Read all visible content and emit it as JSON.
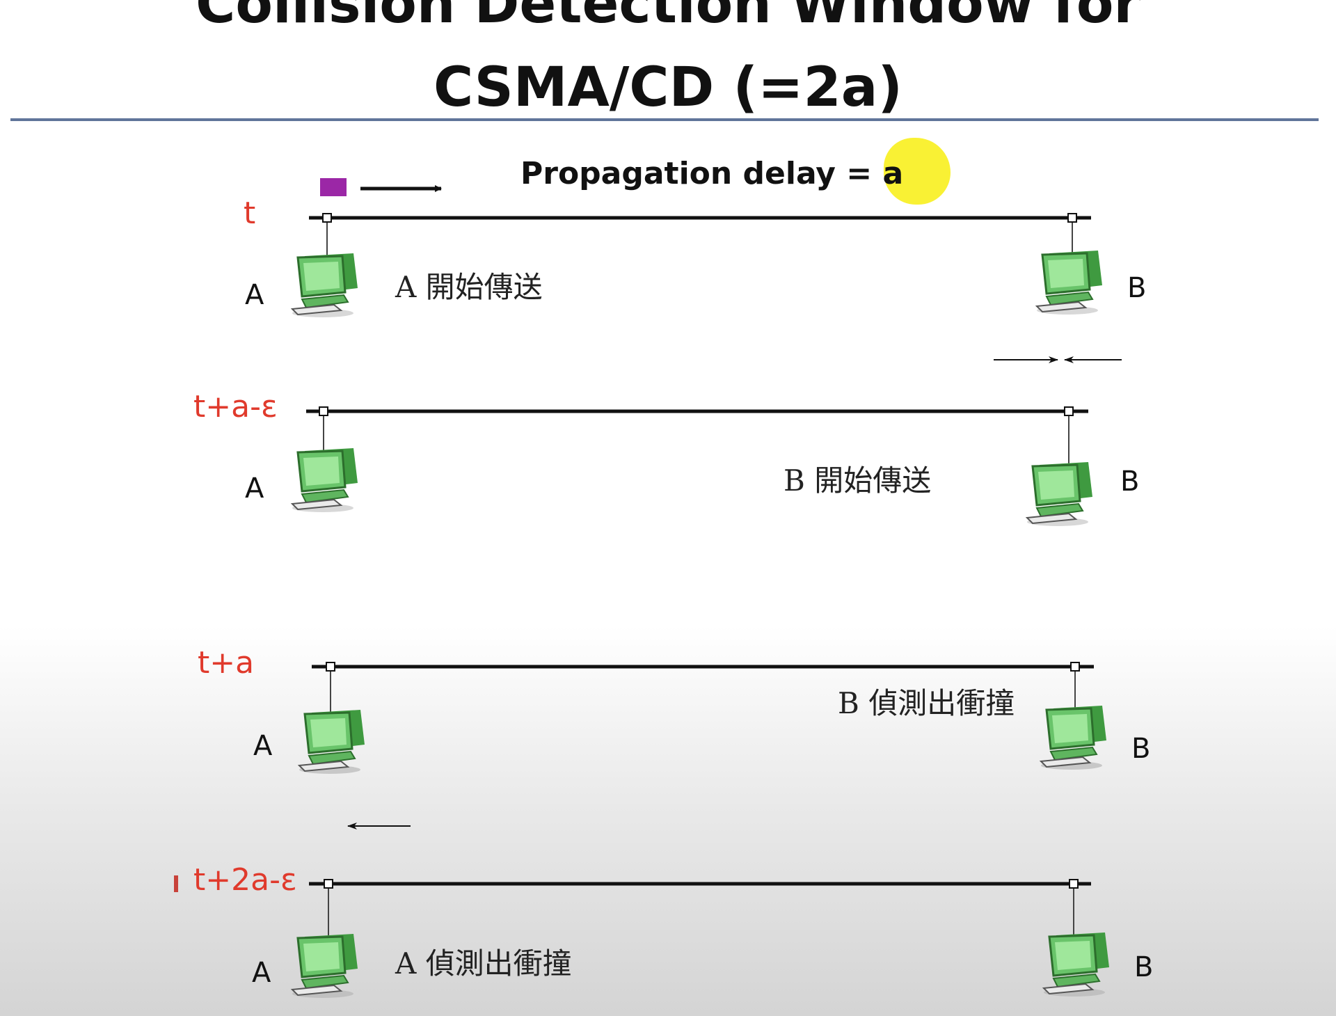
{
  "title": {
    "line1": "Collision Detection Window for",
    "line2": "CSMA/CD (=2a)"
  },
  "propagation_label": "Propagation delay = a",
  "rows": [
    {
      "time": "t",
      "left_station": "A",
      "right_station": "B",
      "event": "A 開始傳送"
    },
    {
      "time": "t+a-ε",
      "left_station": "A",
      "right_station": "B",
      "event": "B 開始傳送"
    },
    {
      "time": "t+a",
      "left_station": "A",
      "right_station": "B",
      "event": "B 偵測出衝撞"
    },
    {
      "time": "t+2a-ε",
      "left_station": "A",
      "right_station": "B",
      "event": "A 偵測出衝撞"
    }
  ],
  "colors": {
    "time_label": "#e03a2c",
    "packet": "#9b27a6",
    "highlight": "#f8f023",
    "rule": "#60759a",
    "computer_screen": "#8fe08a"
  },
  "icons": {
    "station": "computer-icon",
    "direction": "arrow-icon"
  }
}
